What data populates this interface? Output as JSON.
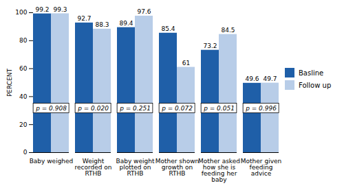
{
  "chart_data": {
    "type": "bar",
    "categories": [
      "Baby weighed",
      "Weight recorded on RTHB",
      "Baby weight plotted on RTHB",
      "Mother shown growth on RTHB",
      "Mother asked how she is feeding her baby",
      "Mother given feeding advice"
    ],
    "series": [
      {
        "name": "Basline",
        "color": "#1f5fa8",
        "values": [
          99.2,
          92.7,
          89.4,
          85.4,
          73.2,
          49.6
        ]
      },
      {
        "name": "Follow up",
        "color": "#b8cde8",
        "values": [
          99.3,
          88.3,
          97.6,
          61,
          84.5,
          49.7
        ]
      }
    ],
    "annotations": [
      "p = 0.908",
      "p = 0.020",
      "p = 0.251",
      "p = 0.072",
      "p = 0.051",
      "p = 0.996"
    ],
    "ylabel": "PERCENT",
    "ylim": [
      0,
      100
    ],
    "yticks": [
      0,
      20,
      40,
      60,
      80,
      100
    ],
    "data_labels": true,
    "legend": "right",
    "grid": false
  }
}
